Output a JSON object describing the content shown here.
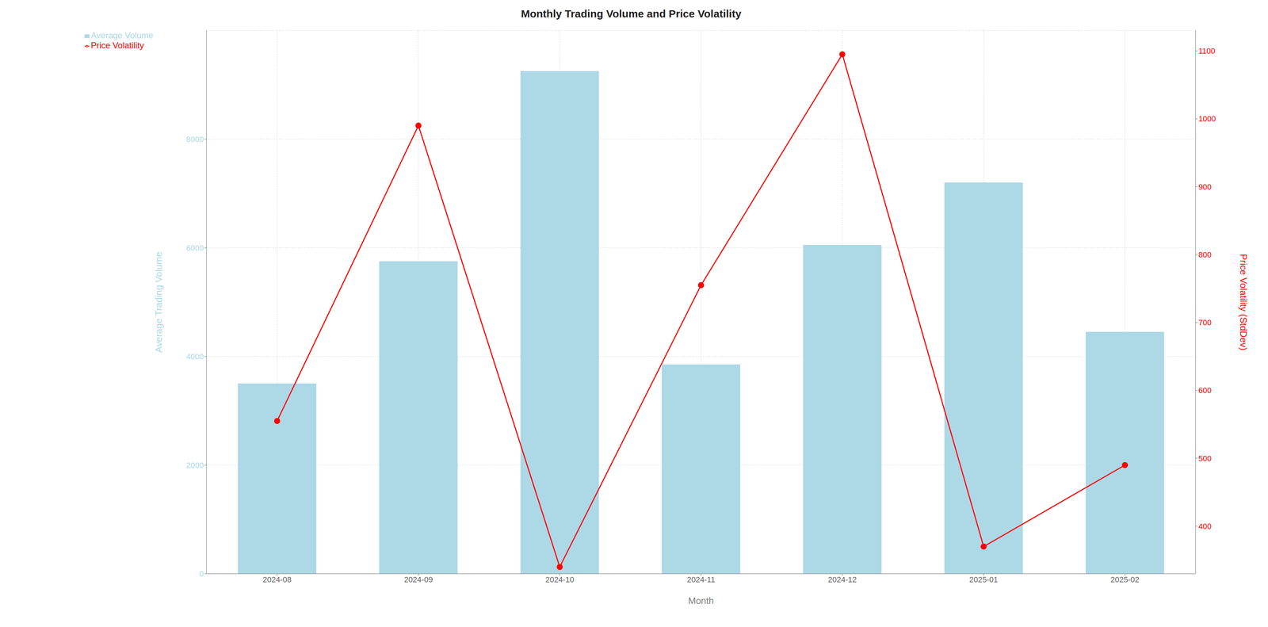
{
  "chart_data": {
    "type": "bar",
    "title": "Monthly Trading Volume and Price Volatility",
    "x_label": "Month",
    "y_label": "Average Trading Volume",
    "y2_label": "Price Volatility (StdDev)",
    "categories": [
      "2024-08",
      "2024-09",
      "2024-10",
      "2024-11",
      "2024-12",
      "2025-01",
      "2025-02"
    ],
    "series": [
      {
        "name": "Average Volume",
        "type": "bar",
        "color": "#add8e6",
        "values": [
          3500,
          5750,
          9250,
          3850,
          6050,
          7200,
          4450
        ]
      },
      {
        "name": "Price Volatility",
        "type": "line",
        "color": "red",
        "marker": "o",
        "axis": "y2",
        "values": [
          555,
          990,
          340,
          755,
          1095,
          370,
          490
        ]
      }
    ],
    "ylim": [
      0,
      10000
    ],
    "yticks": [
      0,
      2000,
      4000,
      6000,
      8000
    ],
    "y2lim": [
      330,
      1130
    ],
    "y2ticks": [
      400,
      500,
      600,
      700,
      800,
      900,
      1000,
      1100
    ],
    "grid": true,
    "legend": "upper left"
  }
}
